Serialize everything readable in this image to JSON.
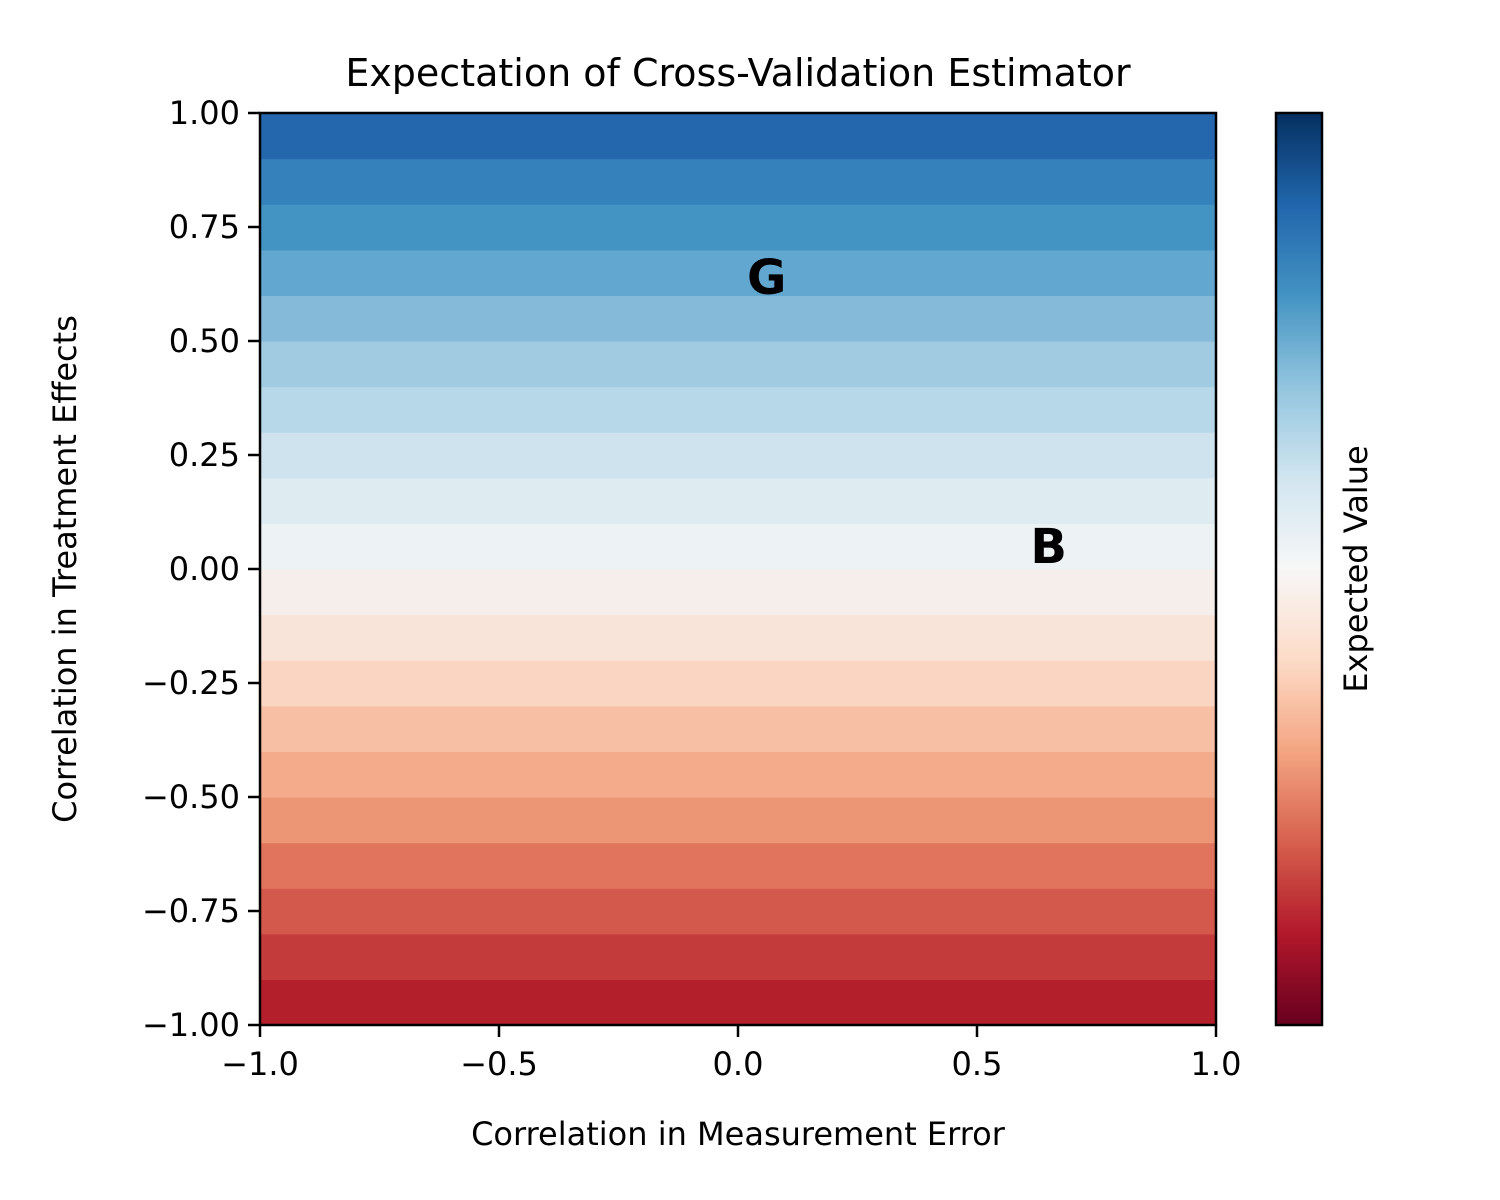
{
  "chart_data": {
    "type": "heatmap",
    "title": "Expectation of Cross-Validation Estimator",
    "xlabel": "Correlation in Measurement Error",
    "ylabel": "Correlation in Treatment Effects",
    "colorbar_label": "Expected Value",
    "colormap": "RdBu",
    "xlim": [
      -1.0,
      1.0
    ],
    "ylim": [
      -1.0,
      1.0
    ],
    "clim": [
      -1.0,
      1.0
    ],
    "grid": false,
    "x_ticks": [
      -1.0,
      -0.5,
      0.0,
      0.5,
      1.0
    ],
    "x_tick_labels": [
      "−1.0",
      "−0.5",
      "0.0",
      "0.5",
      "1.0"
    ],
    "y_ticks": [
      -1.0,
      -0.75,
      -0.5,
      -0.25,
      0.0,
      0.25,
      0.5,
      0.75,
      1.0
    ],
    "y_tick_labels": [
      "−1.00",
      "−0.75",
      "−0.50",
      "−0.25",
      "0.00",
      "0.25",
      "0.50",
      "0.75",
      "1.00"
    ],
    "bands": [
      {
        "y0": -1.0,
        "y1": -0.9,
        "value": -0.79,
        "color": "#b41f2c"
      },
      {
        "y0": -0.9,
        "y1": -0.8,
        "value": -0.72,
        "color": "#c33b3a"
      },
      {
        "y0": -0.8,
        "y1": -0.7,
        "value": -0.64,
        "color": "#d3594c"
      },
      {
        "y0": -0.7,
        "y1": -0.6,
        "value": -0.56,
        "color": "#e1745c"
      },
      {
        "y0": -0.6,
        "y1": -0.5,
        "value": -0.48,
        "color": "#ec9676"
      },
      {
        "y0": -0.5,
        "y1": -0.4,
        "value": -0.4,
        "color": "#f3ab8b"
      },
      {
        "y0": -0.4,
        "y1": -0.3,
        "value": -0.32,
        "color": "#f7c0a4"
      },
      {
        "y0": -0.3,
        "y1": -0.2,
        "value": -0.24,
        "color": "#fad5c2"
      },
      {
        "y0": -0.2,
        "y1": -0.1,
        "value": -0.16,
        "color": "#f9e4d9"
      },
      {
        "y0": -0.1,
        "y1": 0.0,
        "value": -0.08,
        "color": "#f6eeea"
      },
      {
        "y0": 0.0,
        "y1": 0.1,
        "value": 0.08,
        "color": "#edf2f5"
      },
      {
        "y0": 0.1,
        "y1": 0.2,
        "value": 0.16,
        "color": "#deecf2"
      },
      {
        "y0": 0.2,
        "y1": 0.3,
        "value": 0.24,
        "color": "#cfe3ef"
      },
      {
        "y0": 0.3,
        "y1": 0.4,
        "value": 0.32,
        "color": "#b7d8e9"
      },
      {
        "y0": 0.4,
        "y1": 0.5,
        "value": 0.4,
        "color": "#a1cbe1"
      },
      {
        "y0": 0.5,
        "y1": 0.6,
        "value": 0.48,
        "color": "#85bbd9"
      },
      {
        "y0": 0.6,
        "y1": 0.7,
        "value": 0.56,
        "color": "#61a7cf"
      },
      {
        "y0": 0.7,
        "y1": 0.8,
        "value": 0.64,
        "color": "#4393c3"
      },
      {
        "y0": 0.8,
        "y1": 0.9,
        "value": 0.72,
        "color": "#3581bb"
      },
      {
        "y0": 0.9,
        "y1": 1.0,
        "value": 0.79,
        "color": "#2467ad"
      }
    ],
    "colorbar_stops": [
      {
        "v": 0.0,
        "color": "#67001f"
      },
      {
        "v": 0.1,
        "color": "#b2182b"
      },
      {
        "v": 0.2,
        "color": "#d6604d"
      },
      {
        "v": 0.3,
        "color": "#f4a582"
      },
      {
        "v": 0.4,
        "color": "#fddbc7"
      },
      {
        "v": 0.5,
        "color": "#f7f7f7"
      },
      {
        "v": 0.6,
        "color": "#d1e5f0"
      },
      {
        "v": 0.7,
        "color": "#92c5de"
      },
      {
        "v": 0.8,
        "color": "#4393c3"
      },
      {
        "v": 0.9,
        "color": "#2166ac"
      },
      {
        "v": 1.0,
        "color": "#053061"
      }
    ],
    "annotations": [
      {
        "text": "G",
        "x": 0.06,
        "y": 0.64
      },
      {
        "text": "B",
        "x": 0.65,
        "y": 0.05
      }
    ]
  }
}
